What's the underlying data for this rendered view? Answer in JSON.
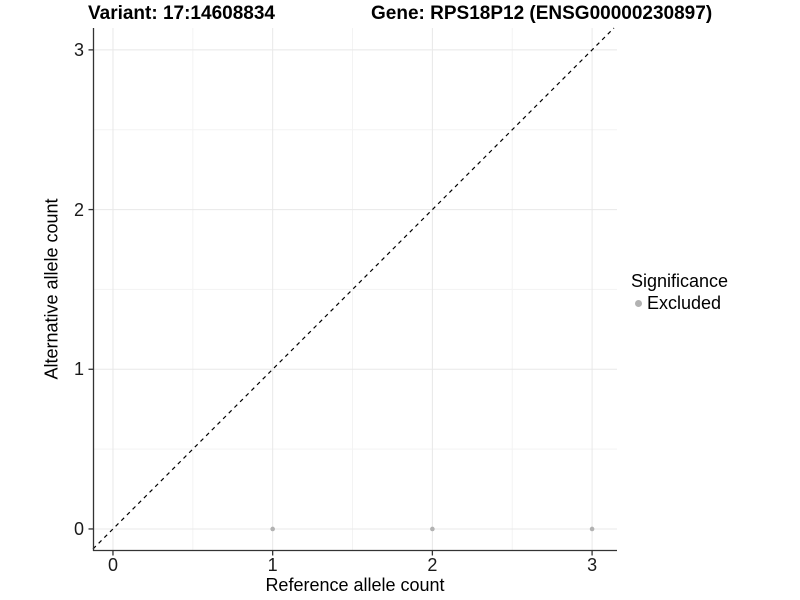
{
  "titles": {
    "variant": "Variant: 17:14608834",
    "gene": "Gene: RPS18P12 (ENSG00000230897)"
  },
  "chart_data": {
    "type": "scatter",
    "title_left": "Variant: 17:14608834",
    "title_right": "Gene: RPS18P12 (ENSG00000230897)",
    "xlabel": "Reference allele count",
    "ylabel": "Alternative allele count",
    "xlim": [
      -0.125,
      3.156
    ],
    "ylim": [
      -0.138,
      3.137
    ],
    "xticks": [
      0,
      1,
      2,
      3
    ],
    "yticks": [
      0,
      1,
      2,
      3
    ],
    "grid": "major and minor, light gray on white",
    "legend_position": "right",
    "series": [
      {
        "name": "Excluded",
        "color": "#b2b2b2",
        "points": [
          {
            "x": 1,
            "y": 0
          },
          {
            "x": 2,
            "y": 0
          },
          {
            "x": 3,
            "y": 0
          }
        ]
      }
    ],
    "reference_line": {
      "type": "identity y=x",
      "style": "dashed",
      "color": "#000000"
    },
    "legend": {
      "title": "Significance",
      "items": [
        {
          "label": "Excluded",
          "color": "#b2b2b2"
        }
      ]
    },
    "colors": {
      "point": "#b2b2b2",
      "axis_line": "#333333",
      "tick_text": "#1a1a1a",
      "grid_major": "#e8e8e8",
      "grid_minor": "#f3f3f3",
      "identity_line": "#000000",
      "background": "#ffffff"
    }
  }
}
